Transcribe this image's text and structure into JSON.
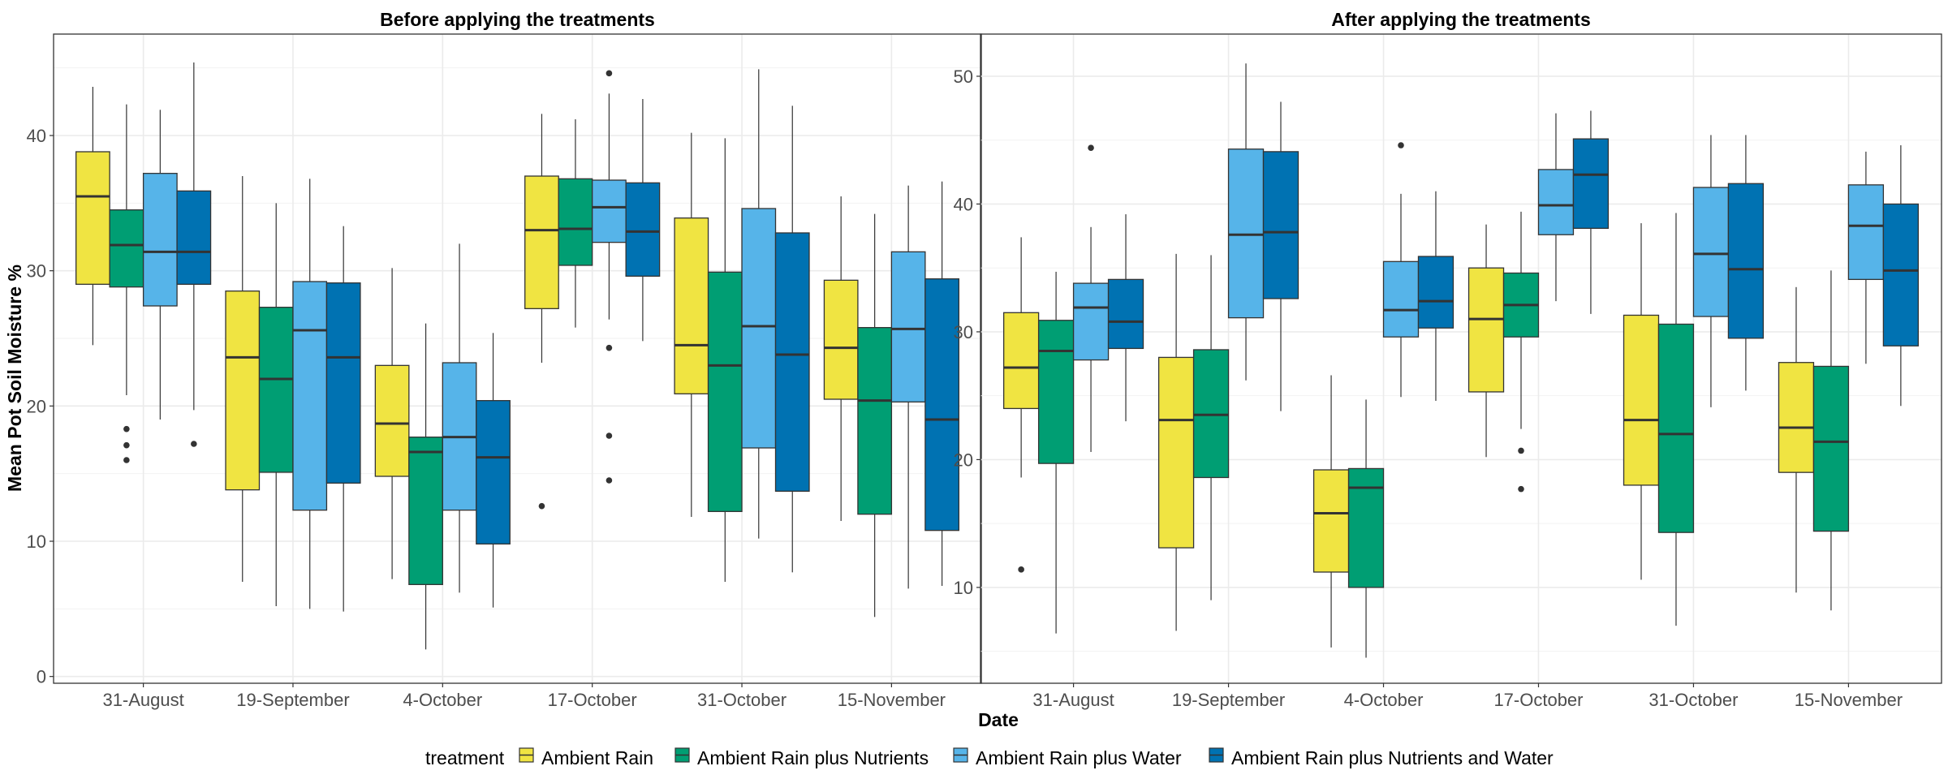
{
  "chart_data": {
    "type": "boxplot",
    "xlabel": "Date",
    "ylabel": "Mean Pot Soil Moisture %",
    "categories": [
      "31-August",
      "19-September",
      "4-October",
      "17-October",
      "31-October",
      "15-November"
    ],
    "legend": {
      "title": "treatment",
      "placement": "bottom",
      "entries": [
        {
          "name": "Ambient Rain",
          "color": "#F0E442"
        },
        {
          "name": "Ambient Rain plus Nutrients",
          "color": "#009E73"
        },
        {
          "name": "Ambient Rain plus Water",
          "color": "#56B4E9"
        },
        {
          "name": "Ambient Rain plus Nutrients and Water",
          "color": "#0072B2"
        }
      ]
    },
    "grid": true,
    "panels": [
      {
        "title": "Before applying the treatments",
        "ylim": [
          -0.5,
          47.5
        ],
        "yticks": [
          0,
          10,
          20,
          30,
          40
        ],
        "groups": [
          {
            "category": "31-August",
            "boxes": [
              {
                "series": "Ambient Rain",
                "whisker_low": 24.5,
                "q1": 29.0,
                "median": 35.5,
                "q3": 38.8,
                "whisker_high": 43.6,
                "outliers": []
              },
              {
                "series": "Ambient Rain plus Nutrients",
                "whisker_low": 20.8,
                "q1": 28.8,
                "median": 31.9,
                "q3": 34.5,
                "whisker_high": 42.3,
                "outliers": [
                  18.3,
                  17.1,
                  16.0
                ]
              },
              {
                "series": "Ambient Rain plus Water",
                "whisker_low": 19.0,
                "q1": 27.4,
                "median": 31.4,
                "q3": 37.2,
                "whisker_high": 41.9,
                "outliers": []
              },
              {
                "series": "Ambient Rain plus Nutrients and Water",
                "whisker_low": 19.7,
                "q1": 29.0,
                "median": 31.4,
                "q3": 35.9,
                "whisker_high": 45.4,
                "outliers": [
                  17.2
                ]
              }
            ]
          },
          {
            "category": "19-September",
            "boxes": [
              {
                "series": "Ambient Rain",
                "whisker_low": 7.0,
                "q1": 13.8,
                "median": 23.6,
                "q3": 28.5,
                "whisker_high": 37.0,
                "outliers": []
              },
              {
                "series": "Ambient Rain plus Nutrients",
                "whisker_low": 5.2,
                "q1": 15.1,
                "median": 22.0,
                "q3": 27.3,
                "whisker_high": 35.0,
                "outliers": []
              },
              {
                "series": "Ambient Rain plus Water",
                "whisker_low": 5.0,
                "q1": 12.3,
                "median": 25.6,
                "q3": 29.2,
                "whisker_high": 36.8,
                "outliers": []
              },
              {
                "series": "Ambient Rain plus Nutrients and Water",
                "whisker_low": 4.8,
                "q1": 14.3,
                "median": 23.6,
                "q3": 29.1,
                "whisker_high": 33.3,
                "outliers": []
              }
            ]
          },
          {
            "category": "4-October",
            "boxes": [
              {
                "series": "Ambient Rain",
                "whisker_low": 7.2,
                "q1": 14.8,
                "median": 18.7,
                "q3": 23.0,
                "whisker_high": 30.2,
                "outliers": []
              },
              {
                "series": "Ambient Rain plus Nutrients",
                "whisker_low": 2.0,
                "q1": 6.8,
                "median": 16.6,
                "q3": 17.7,
                "whisker_high": 26.1,
                "outliers": []
              },
              {
                "series": "Ambient Rain plus Water",
                "whisker_low": 6.2,
                "q1": 12.3,
                "median": 17.7,
                "q3": 23.2,
                "whisker_high": 32.0,
                "outliers": []
              },
              {
                "series": "Ambient Rain plus Nutrients and Water",
                "whisker_low": 5.1,
                "q1": 9.8,
                "median": 16.2,
                "q3": 20.4,
                "whisker_high": 25.4,
                "outliers": []
              }
            ]
          },
          {
            "category": "17-October",
            "boxes": [
              {
                "series": "Ambient Rain",
                "whisker_low": 23.2,
                "q1": 27.2,
                "median": 33.0,
                "q3": 37.0,
                "whisker_high": 41.6,
                "outliers": [
                  12.6
                ]
              },
              {
                "series": "Ambient Rain plus Nutrients",
                "whisker_low": 25.8,
                "q1": 30.4,
                "median": 33.1,
                "q3": 36.8,
                "whisker_high": 41.2,
                "outliers": []
              },
              {
                "series": "Ambient Rain plus Water",
                "whisker_low": 26.4,
                "q1": 32.1,
                "median": 34.7,
                "q3": 36.7,
                "whisker_high": 43.1,
                "outliers": [
                  44.6,
                  24.3,
                  17.8,
                  14.5
                ]
              },
              {
                "series": "Ambient Rain plus Nutrients and Water",
                "whisker_low": 24.8,
                "q1": 29.6,
                "median": 32.9,
                "q3": 36.5,
                "whisker_high": 42.7,
                "outliers": []
              }
            ]
          },
          {
            "category": "31-October",
            "boxes": [
              {
                "series": "Ambient Rain",
                "whisker_low": 11.8,
                "q1": 20.9,
                "median": 24.5,
                "q3": 33.9,
                "whisker_high": 40.2,
                "outliers": []
              },
              {
                "series": "Ambient Rain plus Nutrients",
                "whisker_low": 7.0,
                "q1": 12.2,
                "median": 23.0,
                "q3": 29.9,
                "whisker_high": 39.8,
                "outliers": []
              },
              {
                "series": "Ambient Rain plus Water",
                "whisker_low": 10.2,
                "q1": 16.9,
                "median": 25.9,
                "q3": 34.6,
                "whisker_high": 44.9,
                "outliers": []
              },
              {
                "series": "Ambient Rain plus Nutrients and Water",
                "whisker_low": 7.7,
                "q1": 13.7,
                "median": 23.8,
                "q3": 32.8,
                "whisker_high": 42.2,
                "outliers": []
              }
            ]
          },
          {
            "category": "15-November",
            "boxes": [
              {
                "series": "Ambient Rain",
                "whisker_low": 11.5,
                "q1": 20.5,
                "median": 24.3,
                "q3": 29.3,
                "whisker_high": 35.5,
                "outliers": []
              },
              {
                "series": "Ambient Rain plus Nutrients",
                "whisker_low": 4.4,
                "q1": 12.0,
                "median": 20.4,
                "q3": 25.8,
                "whisker_high": 34.2,
                "outliers": []
              },
              {
                "series": "Ambient Rain plus Water",
                "whisker_low": 6.5,
                "q1": 20.3,
                "median": 25.7,
                "q3": 31.4,
                "whisker_high": 36.3,
                "outliers": []
              },
              {
                "series": "Ambient Rain plus Nutrients and Water",
                "whisker_low": 6.7,
                "q1": 10.8,
                "median": 19.0,
                "q3": 29.4,
                "whisker_high": 36.6,
                "outliers": []
              }
            ]
          }
        ]
      },
      {
        "title": "After applying the treatments",
        "ylim": [
          2.5,
          53.3
        ],
        "yticks": [
          10,
          20,
          30,
          40,
          50
        ],
        "groups": [
          {
            "category": "31-August",
            "boxes": [
              {
                "series": "Ambient Rain",
                "whisker_low": 18.6,
                "q1": 24.0,
                "median": 27.2,
                "q3": 31.5,
                "whisker_high": 37.4,
                "outliers": [
                  11.4
                ]
              },
              {
                "series": "Ambient Rain plus Nutrients",
                "whisker_low": 6.4,
                "q1": 19.7,
                "median": 28.5,
                "q3": 30.9,
                "whisker_high": 34.7,
                "outliers": []
              },
              {
                "series": "Ambient Rain plus Water",
                "whisker_low": 20.6,
                "q1": 27.8,
                "median": 31.9,
                "q3": 33.8,
                "whisker_high": 38.2,
                "outliers": [
                  44.4
                ]
              },
              {
                "series": "Ambient Rain plus Nutrients and Water",
                "whisker_low": 23.0,
                "q1": 28.7,
                "median": 30.8,
                "q3": 34.1,
                "whisker_high": 39.2,
                "outliers": []
              }
            ]
          },
          {
            "category": "19-September",
            "boxes": [
              {
                "series": "Ambient Rain",
                "whisker_low": 6.6,
                "q1": 13.1,
                "median": 23.1,
                "q3": 28.0,
                "whisker_high": 36.1,
                "outliers": []
              },
              {
                "series": "Ambient Rain plus Nutrients",
                "whisker_low": 9.0,
                "q1": 18.6,
                "median": 23.5,
                "q3": 28.6,
                "whisker_high": 36.0,
                "outliers": []
              },
              {
                "series": "Ambient Rain plus Water",
                "whisker_low": 26.2,
                "q1": 31.1,
                "median": 37.6,
                "q3": 44.3,
                "whisker_high": 51.0,
                "outliers": []
              },
              {
                "series": "Ambient Rain plus Nutrients and Water",
                "whisker_low": 23.8,
                "q1": 32.6,
                "median": 37.8,
                "q3": 44.1,
                "whisker_high": 48.0,
                "outliers": []
              }
            ]
          },
          {
            "category": "4-October",
            "boxes": [
              {
                "series": "Ambient Rain",
                "whisker_low": 5.3,
                "q1": 11.2,
                "median": 15.8,
                "q3": 19.2,
                "whisker_high": 26.6,
                "outliers": []
              },
              {
                "series": "Ambient Rain plus Nutrients",
                "whisker_low": 4.5,
                "q1": 10.0,
                "median": 17.8,
                "q3": 19.3,
                "whisker_high": 24.7,
                "outliers": []
              },
              {
                "series": "Ambient Rain plus Water",
                "whisker_low": 24.9,
                "q1": 29.6,
                "median": 31.7,
                "q3": 35.5,
                "whisker_high": 40.8,
                "outliers": [
                  44.6
                ]
              },
              {
                "series": "Ambient Rain plus Nutrients and Water",
                "whisker_low": 24.6,
                "q1": 30.3,
                "median": 32.4,
                "q3": 35.9,
                "whisker_high": 41.0,
                "outliers": []
              }
            ]
          },
          {
            "category": "17-October",
            "boxes": [
              {
                "series": "Ambient Rain",
                "whisker_low": 20.2,
                "q1": 25.3,
                "median": 31.0,
                "q3": 35.0,
                "whisker_high": 38.4,
                "outliers": []
              },
              {
                "series": "Ambient Rain plus Nutrients",
                "whisker_low": 22.4,
                "q1": 29.6,
                "median": 32.1,
                "q3": 34.6,
                "whisker_high": 39.4,
                "outliers": [
                  20.7,
                  17.7
                ]
              },
              {
                "series": "Ambient Rain plus Water",
                "whisker_low": 32.4,
                "q1": 37.6,
                "median": 39.9,
                "q3": 42.7,
                "whisker_high": 47.1,
                "outliers": []
              },
              {
                "series": "Ambient Rain plus Nutrients and Water",
                "whisker_low": 31.4,
                "q1": 38.1,
                "median": 42.3,
                "q3": 45.1,
                "whisker_high": 47.3,
                "outliers": []
              }
            ]
          },
          {
            "category": "31-October",
            "boxes": [
              {
                "series": "Ambient Rain",
                "whisker_low": 10.6,
                "q1": 18.0,
                "median": 23.1,
                "q3": 31.3,
                "whisker_high": 38.5,
                "outliers": []
              },
              {
                "series": "Ambient Rain plus Nutrients",
                "whisker_low": 7.0,
                "q1": 14.3,
                "median": 22.0,
                "q3": 30.6,
                "whisker_high": 39.3,
                "outliers": []
              },
              {
                "series": "Ambient Rain plus Water",
                "whisker_low": 24.1,
                "q1": 31.2,
                "median": 36.1,
                "q3": 41.3,
                "whisker_high": 45.4,
                "outliers": []
              },
              {
                "series": "Ambient Rain plus Nutrients and Water",
                "whisker_low": 25.4,
                "q1": 29.5,
                "median": 34.9,
                "q3": 41.6,
                "whisker_high": 45.4,
                "outliers": []
              }
            ]
          },
          {
            "category": "15-November",
            "boxes": [
              {
                "series": "Ambient Rain",
                "whisker_low": 9.6,
                "q1": 19.0,
                "median": 22.5,
                "q3": 27.6,
                "whisker_high": 33.5,
                "outliers": []
              },
              {
                "series": "Ambient Rain plus Nutrients",
                "whisker_low": 8.2,
                "q1": 14.4,
                "median": 21.4,
                "q3": 27.3,
                "whisker_high": 34.8,
                "outliers": []
              },
              {
                "series": "Ambient Rain plus Water",
                "whisker_low": 27.5,
                "q1": 34.1,
                "median": 38.3,
                "q3": 41.5,
                "whisker_high": 44.1,
                "outliers": []
              },
              {
                "series": "Ambient Rain plus Nutrients and Water",
                "whisker_low": 24.2,
                "q1": 28.9,
                "median": 34.8,
                "q3": 40.0,
                "whisker_high": 44.6,
                "outliers": []
              }
            ]
          }
        ]
      }
    ]
  }
}
